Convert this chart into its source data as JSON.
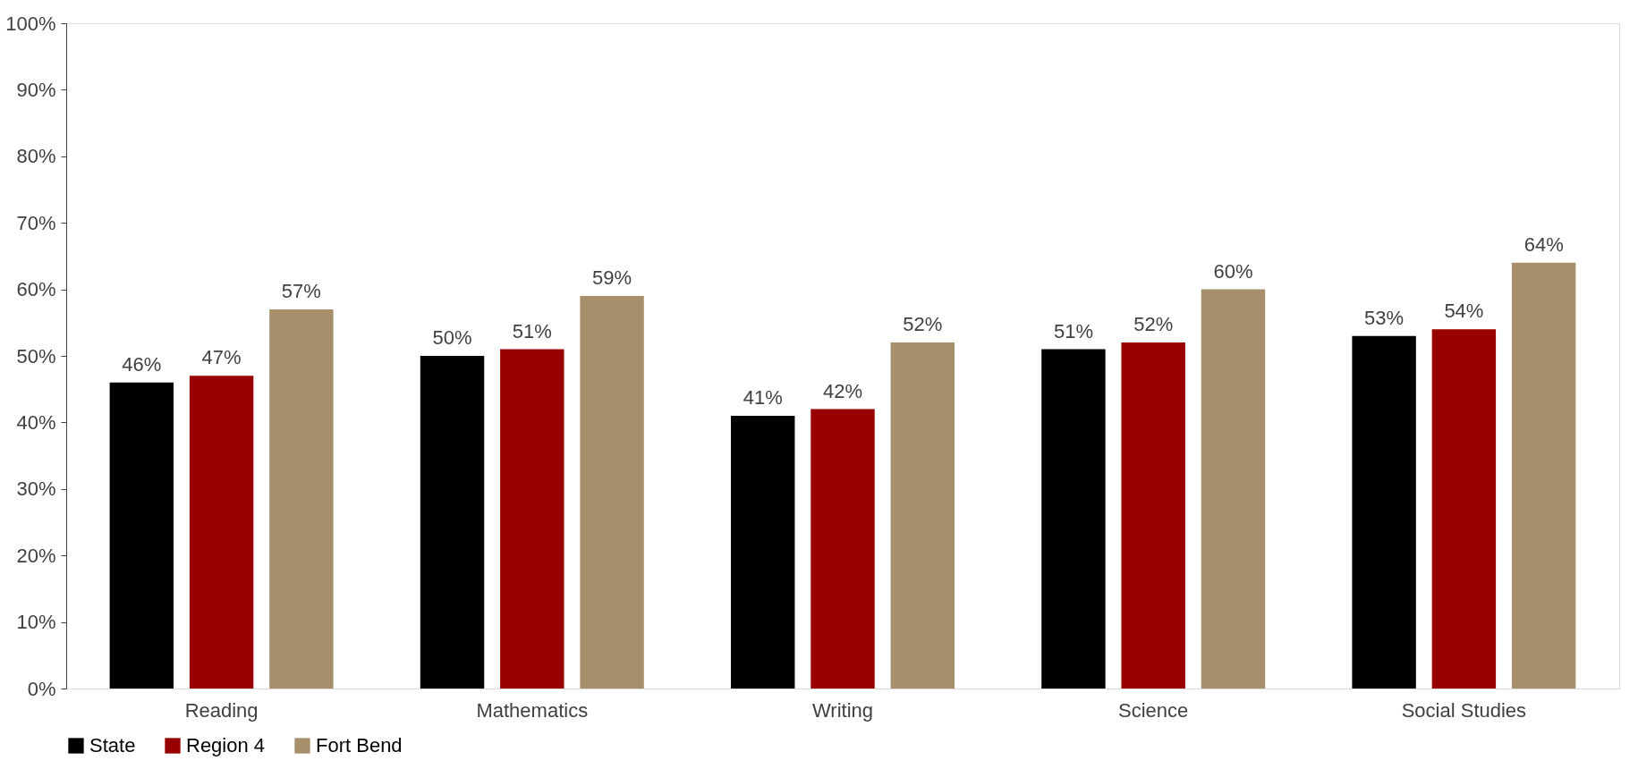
{
  "chart_data": {
    "type": "bar",
    "categories": [
      "Reading",
      "Mathematics",
      "Writing",
      "Science",
      "Social Studies"
    ],
    "series": [
      {
        "name": "State",
        "color": "#000000",
        "values": [
          46,
          50,
          41,
          51,
          53
        ],
        "value_labels": [
          "46%",
          "50%",
          "41%",
          "51%",
          "53%"
        ]
      },
      {
        "name": "Region 4",
        "color": "#990000",
        "values": [
          47,
          51,
          42,
          52,
          54
        ],
        "value_labels": [
          "47%",
          "51%",
          "42%",
          "52%",
          "54%"
        ]
      },
      {
        "name": "Fort Bend",
        "color": "#a68f6a",
        "values": [
          57,
          59,
          52,
          60,
          64
        ],
        "value_labels": [
          "57%",
          "59%",
          "52%",
          "60%",
          "64%"
        ]
      }
    ],
    "ylim": [
      0,
      100
    ],
    "yticks": [
      {
        "value": 0,
        "label": "0%"
      },
      {
        "value": 10,
        "label": "10%"
      },
      {
        "value": 20,
        "label": "20%"
      },
      {
        "value": 30,
        "label": "30%"
      },
      {
        "value": 40,
        "label": "40%"
      },
      {
        "value": 50,
        "label": "50%"
      },
      {
        "value": 60,
        "label": "60%"
      },
      {
        "value": 70,
        "label": "70%"
      },
      {
        "value": 80,
        "label": "80%"
      },
      {
        "value": 90,
        "label": "90%"
      },
      {
        "value": 100,
        "label": "100%"
      }
    ],
    "grid": false,
    "legend": "bottom"
  }
}
